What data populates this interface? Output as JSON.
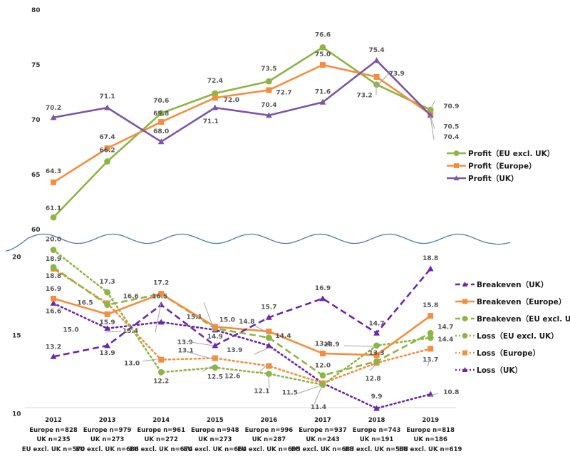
{
  "chart_data": [
    {
      "type": "line",
      "panel": "upper",
      "title": "",
      "xlabel": "",
      "ylabel": "",
      "ylim": [
        60,
        80
      ],
      "yticks": [
        "80",
        "75",
        "70",
        "65",
        "60"
      ],
      "ytick_values": [
        80,
        75,
        70,
        65,
        60
      ],
      "grid": false,
      "legend_position": "right",
      "categories": [
        "2012",
        "2013",
        "2014",
        "2015",
        "2016",
        "2017",
        "2018",
        "2019"
      ],
      "series": [
        {
          "name": "Profit（EU excl. UK）",
          "color": "#8cb543",
          "marker": "circle",
          "dash": "solid",
          "values": [
            61.1,
            66.2,
            70.6,
            72.4,
            73.5,
            76.6,
            73.2,
            70.9
          ]
        },
        {
          "name": "Profit（Europe）",
          "color": "#f58d3d",
          "marker": "square",
          "dash": "solid",
          "values": [
            64.3,
            67.4,
            69.8,
            72.0,
            72.7,
            75.0,
            73.9,
            70.5
          ]
        },
        {
          "name": "Profit（UK）",
          "color": "#7a56a6",
          "marker": "triangle",
          "dash": "solid",
          "values": [
            70.2,
            71.1,
            68.0,
            71.1,
            70.4,
            71.6,
            75.4,
            70.4
          ]
        }
      ]
    },
    {
      "type": "line",
      "panel": "lower",
      "title": "",
      "xlabel": "",
      "ylabel": "",
      "ylim": [
        10,
        20
      ],
      "yticks": [
        "20",
        "15",
        "10"
      ],
      "ytick_values": [
        20,
        15,
        10
      ],
      "grid": false,
      "legend_position": "right",
      "categories": [
        "2012",
        "2013",
        "2014",
        "2015",
        "2016",
        "2017",
        "2018",
        "2019"
      ],
      "series": [
        {
          "name": "Breakeven（UK）",
          "color": "#6a28a8",
          "marker": "triangle",
          "dash": "dashed",
          "values": [
            13.2,
            13.9,
            16.5,
            13.9,
            15.7,
            16.9,
            14.7,
            18.8
          ],
          "labels": [
            "13.2",
            "13.9",
            "16.5",
            "13.9",
            "15.7",
            "16.9",
            "14.7",
            "18.8"
          ]
        },
        {
          "name": "Breakeven（Europe）",
          "color": "#f58d3d",
          "marker": "square",
          "dash": "solid",
          "values": [
            16.9,
            15.9,
            17.2,
            15.1,
            14.8,
            13.4,
            13.3,
            15.8
          ],
          "labels": [
            "16.9",
            "15.9",
            "17.2",
            "15.1",
            "14.8",
            "13.4",
            "13.3",
            "15.8"
          ]
        },
        {
          "name": "Breakeven（EU excl. UK）",
          "color": "#8cb543",
          "marker": "circle",
          "dash": "dashed",
          "values": [
            18.9,
            16.5,
            17.2,
            15.0,
            14.4,
            12.0,
            12.9,
            14.7
          ],
          "labels": [
            "18.9",
            "16.5",
            "",
            "15.0",
            "14.4",
            "12.0",
            "",
            "14.7"
          ]
        },
        {
          "name": "Loss（EU excl. UK）",
          "color": "#8cb543",
          "marker": "circle",
          "dash": "dotted",
          "values": [
            20.0,
            17.3,
            12.2,
            12.5,
            12.1,
            11.4,
            13.9,
            14.4
          ],
          "labels": [
            "20.0",
            "17.3",
            "12.2",
            "12.5",
            "12.1",
            "11.4",
            "13.9",
            "14.4"
          ]
        },
        {
          "name": "Loss（Europe）",
          "color": "#f58d3d",
          "marker": "square",
          "dash": "dotted",
          "values": [
            18.8,
            16.6,
            13.0,
            13.1,
            12.6,
            11.5,
            12.8,
            13.7
          ],
          "labels": [
            "18.8",
            "16.6",
            "13.0",
            "13.1",
            "12.6",
            "11.5",
            "12.8",
            "13.7"
          ]
        },
        {
          "name": "Loss（UK）",
          "color": "#6a28a8",
          "marker": "triangle",
          "dash": "dotted",
          "values": [
            16.6,
            15.0,
            15.4,
            14.9,
            13.9,
            11.5,
            9.9,
            10.8
          ],
          "labels": [
            "16.6",
            "15.0",
            "15.4",
            "14.9",
            "13.9",
            "",
            "9.9",
            "10.8"
          ]
        }
      ]
    }
  ],
  "x_axis": {
    "categories": [
      {
        "year": "2012",
        "europe_n": "Europe n=828",
        "uk_n": "UK n=235",
        "eu_excl_uk_n": "EU excl. UK n=570"
      },
      {
        "year": "2013",
        "europe_n": "Europe n=979",
        "uk_n": "UK n=273",
        "eu_excl_uk_n": "EU excl. UK n=686"
      },
      {
        "year": "2014",
        "europe_n": "Europe n=961",
        "uk_n": "UK n=272",
        "eu_excl_uk_n": "EU excl. UK n=674"
      },
      {
        "year": "2015",
        "europe_n": "Europe n=948",
        "uk_n": "UK n=273",
        "eu_excl_uk_n": "EU excl. UK n=664"
      },
      {
        "year": "2016",
        "europe_n": "Europe n=996",
        "uk_n": "UK n=287",
        "eu_excl_uk_n": "EU excl. UK n=695"
      },
      {
        "year": "2017",
        "europe_n": "Europe n=937",
        "uk_n": "UK n=243",
        "eu_excl_uk_n": "EU excl. UK n=683"
      },
      {
        "year": "2018",
        "europe_n": "Europe n=743",
        "uk_n": "UK n=191",
        "eu_excl_uk_n": "EU excl. UK n=538"
      },
      {
        "year": "2019",
        "europe_n": "Europe n=818",
        "uk_n": "UK n=186",
        "eu_excl_uk_n": "EU excl. UK n=619"
      }
    ]
  },
  "axis_break": {
    "style": "wave",
    "color": "#4a7ab0"
  }
}
